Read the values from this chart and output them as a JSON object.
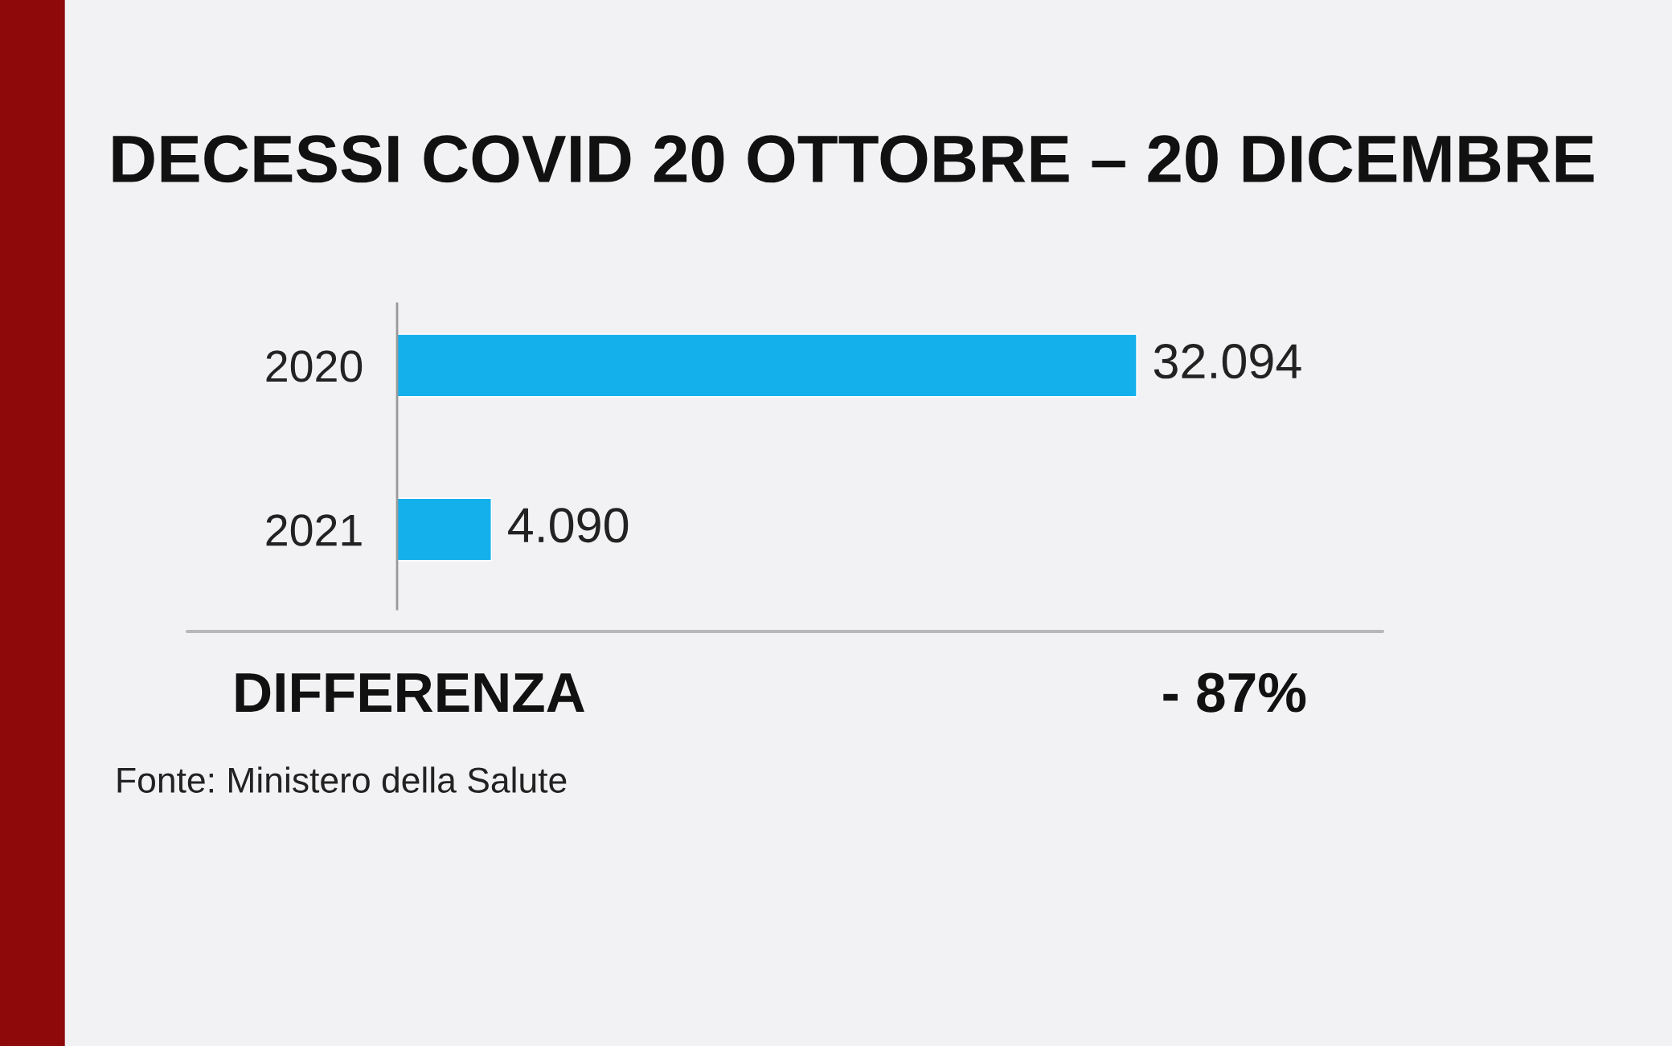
{
  "chart_data": {
    "type": "bar",
    "orientation": "horizontal",
    "title": "DECESSI COVID 20 OTTOBRE – 20 DICEMBRE",
    "categories": [
      "2020",
      "2021"
    ],
    "values": [
      32094,
      4090
    ],
    "value_labels": [
      "32.094",
      "4.090"
    ],
    "color": "#14b0ec",
    "annotations": [
      "DIFFERENZA",
      "- 87%",
      "Fonte: Ministero della Salute"
    ],
    "grid": false,
    "legend": false
  }
}
